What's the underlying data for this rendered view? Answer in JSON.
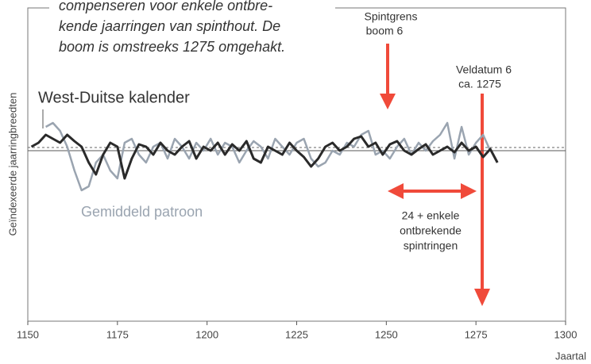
{
  "chart_data": {
    "type": "line",
    "xlabel": "Jaartal",
    "ylabel": "Geïndexeerde jaarringbreedten",
    "notes": [
      "compenseren voor enkele ontbre-",
      "kende jaarringen van spinthout. De",
      "boom is omstreeks 1275 omgehakt."
    ],
    "annotations": [
      [
        "Spintgrens",
        "boom 6"
      ],
      [
        "Veldatum 6",
        "ca. 1275"
      ],
      [
        "24 + enkele",
        "ontbrekende",
        "spintringen"
      ]
    ],
    "xlim": [
      1150,
      1300
    ],
    "xticks": [
      1150,
      1175,
      1200,
      1225,
      1250,
      1275,
      1300
    ],
    "ylim": [
      -2.15,
      1.8
    ],
    "series": [
      {
        "name": "West-Duitse kalender",
        "color": "#2a2a2a",
        "x": [
          1151,
          1153,
          1155,
          1157,
          1159,
          1161,
          1163,
          1165,
          1167,
          1169,
          1171,
          1173,
          1175,
          1177,
          1179,
          1181,
          1183,
          1185,
          1187,
          1189,
          1191,
          1193,
          1195,
          1197,
          1199,
          1201,
          1203,
          1205,
          1207,
          1209,
          1211,
          1213,
          1215,
          1217,
          1219,
          1221,
          1223,
          1225,
          1227,
          1229,
          1231,
          1233,
          1235,
          1237,
          1239,
          1241,
          1243,
          1245,
          1247,
          1249,
          1251,
          1253,
          1255,
          1257,
          1259,
          1261,
          1263,
          1265,
          1267,
          1269,
          1271,
          1273,
          1275,
          1277,
          1279,
          1281
        ],
        "values": [
          0.05,
          0.1,
          0.2,
          0.15,
          0.1,
          0.2,
          0.12,
          0.05,
          -0.15,
          -0.3,
          -0.05,
          0.1,
          0.05,
          -0.35,
          -0.1,
          0.08,
          0.05,
          -0.05,
          0.1,
          0.0,
          -0.05,
          0.05,
          0.12,
          -0.1,
          0.05,
          0.0,
          0.1,
          -0.05,
          0.08,
          0.0,
          0.12,
          -0.1,
          -0.15,
          0.05,
          0.0,
          -0.05,
          0.1,
          0.0,
          -0.08,
          -0.2,
          -0.1,
          0.05,
          0.1,
          0.0,
          0.05,
          0.15,
          0.18,
          0.05,
          0.1,
          -0.05,
          0.08,
          0.12,
          0.0,
          -0.05,
          0.02,
          0.08,
          -0.05,
          0.0,
          0.05,
          -0.02,
          0.1,
          0.0,
          0.05,
          -0.08,
          0.02,
          -0.15
        ]
      },
      {
        "name": "Gemiddeld patroon",
        "color": "#9aa4b0",
        "x": [
          1155,
          1157,
          1159,
          1161,
          1163,
          1165,
          1167,
          1169,
          1171,
          1173,
          1175,
          1177,
          1179,
          1181,
          1183,
          1185,
          1187,
          1189,
          1191,
          1193,
          1195,
          1197,
          1199,
          1201,
          1203,
          1205,
          1207,
          1209,
          1211,
          1213,
          1215,
          1217,
          1219,
          1221,
          1223,
          1225,
          1227,
          1229,
          1231,
          1233,
          1235,
          1237,
          1239,
          1241,
          1243,
          1245,
          1247,
          1249,
          1251,
          1253,
          1255,
          1257,
          1259,
          1261,
          1263,
          1265,
          1267,
          1269,
          1271,
          1273,
          1275,
          1277,
          1279
        ],
        "values": [
          0.3,
          0.35,
          0.25,
          0.05,
          -0.25,
          -0.5,
          -0.45,
          -0.15,
          -0.05,
          -0.25,
          -0.35,
          0.1,
          0.15,
          -0.05,
          -0.15,
          0.05,
          0.1,
          -0.1,
          0.15,
          0.05,
          -0.1,
          0.1,
          0.0,
          0.15,
          -0.05,
          0.1,
          0.05,
          -0.15,
          0.0,
          0.12,
          0.05,
          -0.1,
          0.15,
          0.05,
          -0.05,
          0.1,
          0.15,
          -0.1,
          -0.2,
          -0.15,
          0.0,
          -0.05,
          0.1,
          0.05,
          0.2,
          0.25,
          -0.05,
          0.0,
          -0.1,
          0.05,
          0.15,
          -0.05,
          0.1,
          0.0,
          0.12,
          0.2,
          0.35,
          -0.1,
          0.3,
          -0.05,
          0.1,
          0.2,
          0.0
        ]
      }
    ]
  }
}
